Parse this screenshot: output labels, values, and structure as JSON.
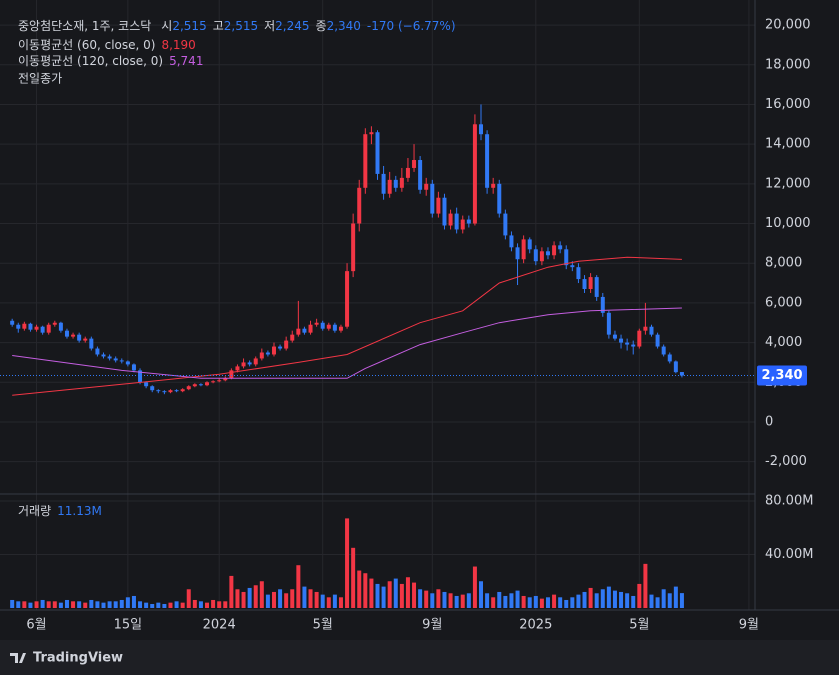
{
  "header": {
    "symbol": "중앙첨단소재, 1주, 코스닥",
    "fields": [
      [
        "시",
        "2,515"
      ],
      [
        "고",
        "2,515"
      ],
      [
        "저",
        "2,245"
      ],
      [
        "종",
        "2,340"
      ]
    ],
    "change": "-170 (−6.77%)",
    "prev_close": "전일종가",
    "brand": "TradingView"
  },
  "chart_data": {
    "type": "candlestick",
    "xlim": [
      -2,
      122
    ],
    "xticks": [
      {
        "value": 4,
        "label": "6월"
      },
      {
        "value": 19,
        "label": "15일"
      },
      {
        "value": 34,
        "label": "2024"
      },
      {
        "value": 51,
        "label": "5월"
      },
      {
        "value": 69,
        "label": "9월"
      },
      {
        "value": 86,
        "label": "2025"
      },
      {
        "value": 103,
        "label": "5월"
      },
      {
        "value": 121,
        "label": "9월"
      }
    ],
    "ylim": [
      -3580,
      20860
    ],
    "yticks": [
      {
        "value": -2000,
        "label": "-2,000"
      },
      0,
      {
        "value": 2000,
        "label": "2,000"
      },
      {
        "value": 4000,
        "label": "4,000"
      },
      {
        "value": 6000,
        "label": "6,000"
      },
      {
        "value": 8000,
        "label": "8,000"
      },
      {
        "value": 10000,
        "label": "10,000"
      },
      {
        "value": 12000,
        "label": "12,000"
      },
      {
        "value": 14000,
        "label": "14,000"
      },
      {
        "value": 16000,
        "label": "16,000"
      },
      {
        "value": 18000,
        "label": "18,000"
      },
      {
        "value": 20000,
        "label": "20,000"
      }
    ],
    "grid": true,
    "up_color": "#f23645",
    "down_color": "#3179f5",
    "open": [
      5100,
      4900,
      4700,
      4950,
      4650,
      4800,
      4500,
      4900,
      5000,
      4600,
      4300,
      4400,
      4100,
      4200,
      3700,
      3400,
      3300,
      3200,
      3100,
      3050,
      2900,
      2600,
      2000,
      1800,
      1600,
      1550,
      1500,
      1600,
      1550,
      1650,
      1800,
      1900,
      1850,
      2000,
      2050,
      2100,
      2200,
      2600,
      2800,
      3000,
      2900,
      3200,
      3500,
      3400,
      3800,
      3700,
      4100,
      4400,
      4700,
      4500,
      4900,
      5000,
      4700,
      4900,
      4600,
      4800,
      7600,
      10000,
      11800,
      14500,
      14600,
      12500,
      11500,
      12200,
      11800,
      12300,
      12800,
      13200,
      11700,
      12000,
      10500,
      11300,
      9900,
      10500,
      9700,
      10200,
      10000,
      15000,
      14500,
      11800,
      12000,
      10500,
      9400,
      8800,
      8200,
      9200,
      8700,
      8100,
      8600,
      8400,
      8900,
      8700,
      7900,
      7800,
      7200,
      6700,
      7300,
      6300,
      5500,
      4400,
      4200,
      4000,
      3900,
      3800,
      4600,
      4800,
      4400,
      3800,
      3400,
      3050,
      2515
    ],
    "high": [
      5200,
      5000,
      5050,
      5000,
      4900,
      4850,
      5000,
      5100,
      5050,
      4700,
      4500,
      4500,
      4300,
      4300,
      3800,
      3500,
      3400,
      3300,
      3200,
      3100,
      2950,
      2700,
      2050,
      1850,
      1650,
      1600,
      1650,
      1650,
      1700,
      1850,
      1950,
      1950,
      2050,
      2100,
      2200,
      2300,
      2700,
      2900,
      3200,
      3100,
      3300,
      3700,
      3600,
      4000,
      3900,
      4300,
      4600,
      6100,
      4800,
      5100,
      5200,
      5100,
      5000,
      5000,
      4900,
      8000,
      10500,
      12200,
      14800,
      14900,
      14700,
      12900,
      12600,
      12400,
      12800,
      13300,
      14000,
      13400,
      12300,
      12200,
      11600,
      11500,
      10700,
      10800,
      10400,
      10400,
      15500,
      16000,
      14700,
      12300,
      12200,
      10700,
      9600,
      9000,
      9400,
      9300,
      8900,
      8800,
      8800,
      9100,
      9100,
      8900,
      8100,
      8000,
      7400,
      7500,
      7400,
      6500,
      5600,
      4600,
      4400,
      4200,
      4100,
      4700,
      6000,
      4900,
      4500,
      3900,
      3500,
      3100,
      2515
    ],
    "low": [
      4800,
      4500,
      4600,
      4550,
      4550,
      4400,
      4400,
      4800,
      4500,
      4200,
      4200,
      4000,
      4000,
      3600,
      3300,
      3200,
      3100,
      3000,
      2950,
      2800,
      2500,
      1900,
      1700,
      1500,
      1450,
      1400,
      1450,
      1500,
      1500,
      1600,
      1750,
      1800,
      1800,
      1950,
      2000,
      2050,
      2150,
      2500,
      2700,
      2800,
      2800,
      3100,
      3300,
      3300,
      3600,
      3600,
      4000,
      4300,
      4400,
      4400,
      4800,
      4600,
      4600,
      4500,
      4500,
      4700,
      7300,
      9600,
      11500,
      14000,
      12200,
      11200,
      11300,
      11600,
      11600,
      12100,
      12600,
      11500,
      11400,
      10300,
      10300,
      9700,
      9700,
      9500,
      9500,
      9800,
      9900,
      14200,
      11500,
      11500,
      10300,
      9200,
      8600,
      6900,
      8000,
      8500,
      7900,
      7900,
      8200,
      8200,
      8500,
      7700,
      7600,
      7000,
      6500,
      6500,
      6100,
      5300,
      4200,
      4100,
      3700,
      3600,
      3400,
      3700,
      4400,
      4300,
      3700,
      3300,
      2950,
      2450,
      2245
    ],
    "close": [
      4900,
      4700,
      4950,
      4650,
      4800,
      4500,
      4900,
      5000,
      4600,
      4300,
      4400,
      4100,
      4200,
      3700,
      3400,
      3300,
      3200,
      3100,
      3050,
      2900,
      2600,
      2000,
      1800,
      1600,
      1550,
      1500,
      1600,
      1550,
      1650,
      1800,
      1900,
      1850,
      2000,
      2050,
      2100,
      2200,
      2600,
      2800,
      3000,
      2900,
      3200,
      3500,
      3400,
      3800,
      3700,
      4100,
      4400,
      4700,
      4500,
      4900,
      5000,
      4700,
      4900,
      4600,
      4800,
      7600,
      10000,
      11800,
      14500,
      14600,
      12500,
      11500,
      12200,
      11800,
      12300,
      12800,
      13200,
      11700,
      12000,
      10500,
      11300,
      9900,
      10500,
      9700,
      10200,
      10000,
      15000,
      14500,
      11800,
      12000,
      10500,
      9400,
      8800,
      8200,
      9200,
      8700,
      8100,
      8600,
      8400,
      8900,
      8700,
      7900,
      7800,
      7200,
      6700,
      7300,
      6300,
      5500,
      4400,
      4200,
      4000,
      3900,
      3800,
      4600,
      4800,
      4400,
      3800,
      3400,
      3050,
      2510,
      2340
    ],
    "price_line": {
      "value": 2340,
      "label": "2,340"
    },
    "moving_averages": [
      {
        "name": "이동평균선 (60, close, 0)",
        "color": "#f23645",
        "x": [
          0,
          18,
          34,
          47,
          55,
          67,
          74,
          80,
          88,
          93,
          101,
          110
        ],
        "values": [
          1350,
          1900,
          2400,
          3000,
          3400,
          5000,
          5600,
          7000,
          7800,
          8100,
          8300,
          8190
        ],
        "legend_value": "8,190"
      },
      {
        "name": "이동평균선 (120, close, 0)",
        "color": "#c45ee0",
        "x": [
          0,
          18,
          31,
          55,
          58,
          67,
          74,
          80,
          88,
          95,
          110
        ],
        "values": [
          3350,
          2600,
          2200,
          2200,
          2700,
          3900,
          4500,
          5000,
          5400,
          5600,
          5741
        ],
        "legend_value": "5,741"
      }
    ],
    "volume": {
      "name": "거래량",
      "legend_value": "11.13M",
      "ylim": [
        0,
        84500000
      ],
      "yticks": [
        {
          "value": 40000000,
          "label": "40.00M"
        },
        {
          "value": 80000000,
          "label": "80.00M"
        }
      ],
      "values": [
        6000000,
        5000000,
        5000000,
        4000000,
        5000000,
        6000000,
        5000000,
        5000000,
        4000000,
        6000000,
        5000000,
        5000000,
        4000000,
        6000000,
        5000000,
        4000000,
        5000000,
        5000000,
        6000000,
        8000000,
        9000000,
        5000000,
        4000000,
        3000000,
        4000000,
        3000000,
        4000000,
        5000000,
        4000000,
        14000000,
        6000000,
        5000000,
        4000000,
        6000000,
        5000000,
        5000000,
        24000000,
        14000000,
        12000000,
        15000000,
        17000000,
        20000000,
        10000000,
        12000000,
        14000000,
        11000000,
        14000000,
        32000000,
        16000000,
        14000000,
        12000000,
        10000000,
        8000000,
        10000000,
        8000000,
        67000000,
        45000000,
        28000000,
        26000000,
        22000000,
        18000000,
        16000000,
        20000000,
        22000000,
        18000000,
        23000000,
        19000000,
        14000000,
        13000000,
        11000000,
        14000000,
        12000000,
        11000000,
        9000000,
        10000000,
        11000000,
        31000000,
        20000000,
        11000000,
        8000000,
        12000000,
        9000000,
        11000000,
        13000000,
        9000000,
        8000000,
        9000000,
        7000000,
        8000000,
        10000000,
        8000000,
        6000000,
        8000000,
        10000000,
        12000000,
        15000000,
        11000000,
        14000000,
        16000000,
        13000000,
        12000000,
        11000000,
        9000000,
        18000000,
        33000000,
        10000000,
        8000000,
        14000000,
        11000000,
        16000000,
        11130000
      ]
    }
  }
}
